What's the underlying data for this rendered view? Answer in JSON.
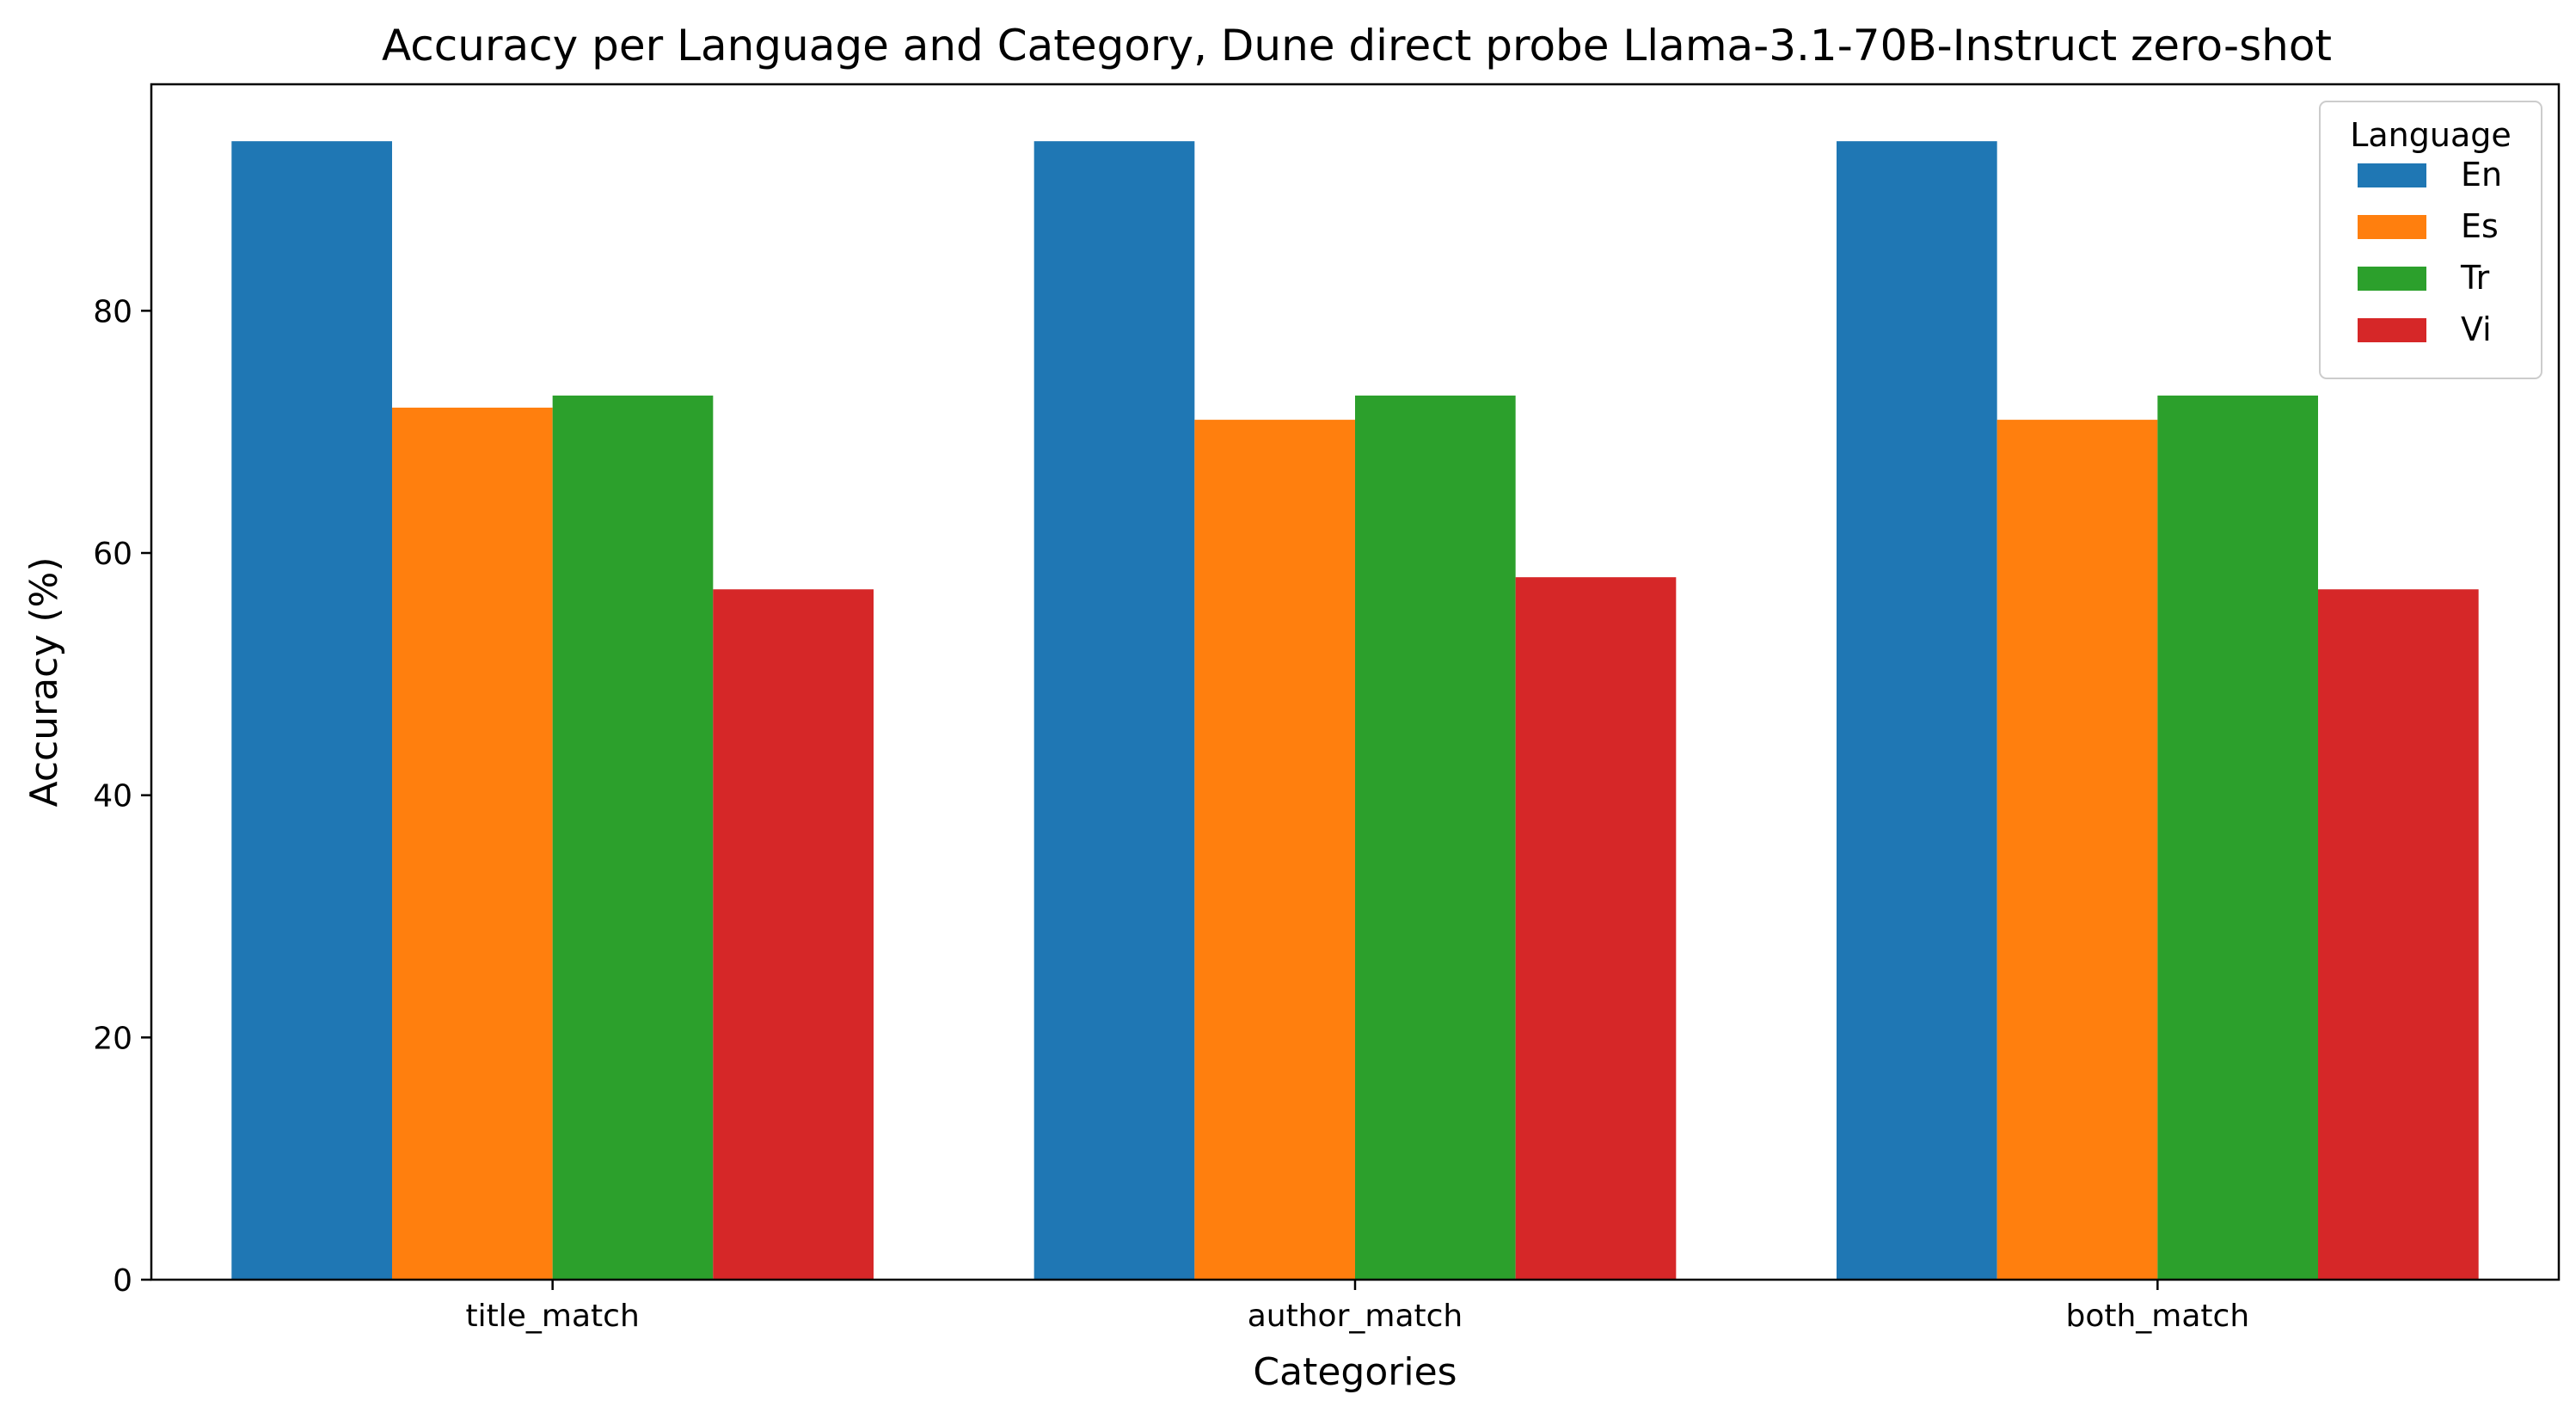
{
  "chart_data": {
    "type": "bar",
    "title": "Accuracy per Language and Category, Dune direct probe Llama-3.1-70B-Instruct zero-shot",
    "xlabel": "Categories",
    "ylabel": "Accuracy (%)",
    "categories": [
      "title_match",
      "author_match",
      "both_match"
    ],
    "series": [
      {
        "name": "En",
        "color": "#1f77b4",
        "values": [
          94,
          94,
          94
        ]
      },
      {
        "name": "Es",
        "color": "#ff7f0e",
        "values": [
          72,
          71,
          71
        ]
      },
      {
        "name": "Tr",
        "color": "#2ca02c",
        "values": [
          73,
          73,
          73
        ]
      },
      {
        "name": "Vi",
        "color": "#d62728",
        "values": [
          57,
          58,
          57
        ]
      }
    ],
    "ylim": [
      0,
      98.7
    ],
    "yticks": [
      0,
      20,
      40,
      60,
      80
    ],
    "grid": false,
    "legend": {
      "title": "Language",
      "placement": "top-right"
    }
  }
}
